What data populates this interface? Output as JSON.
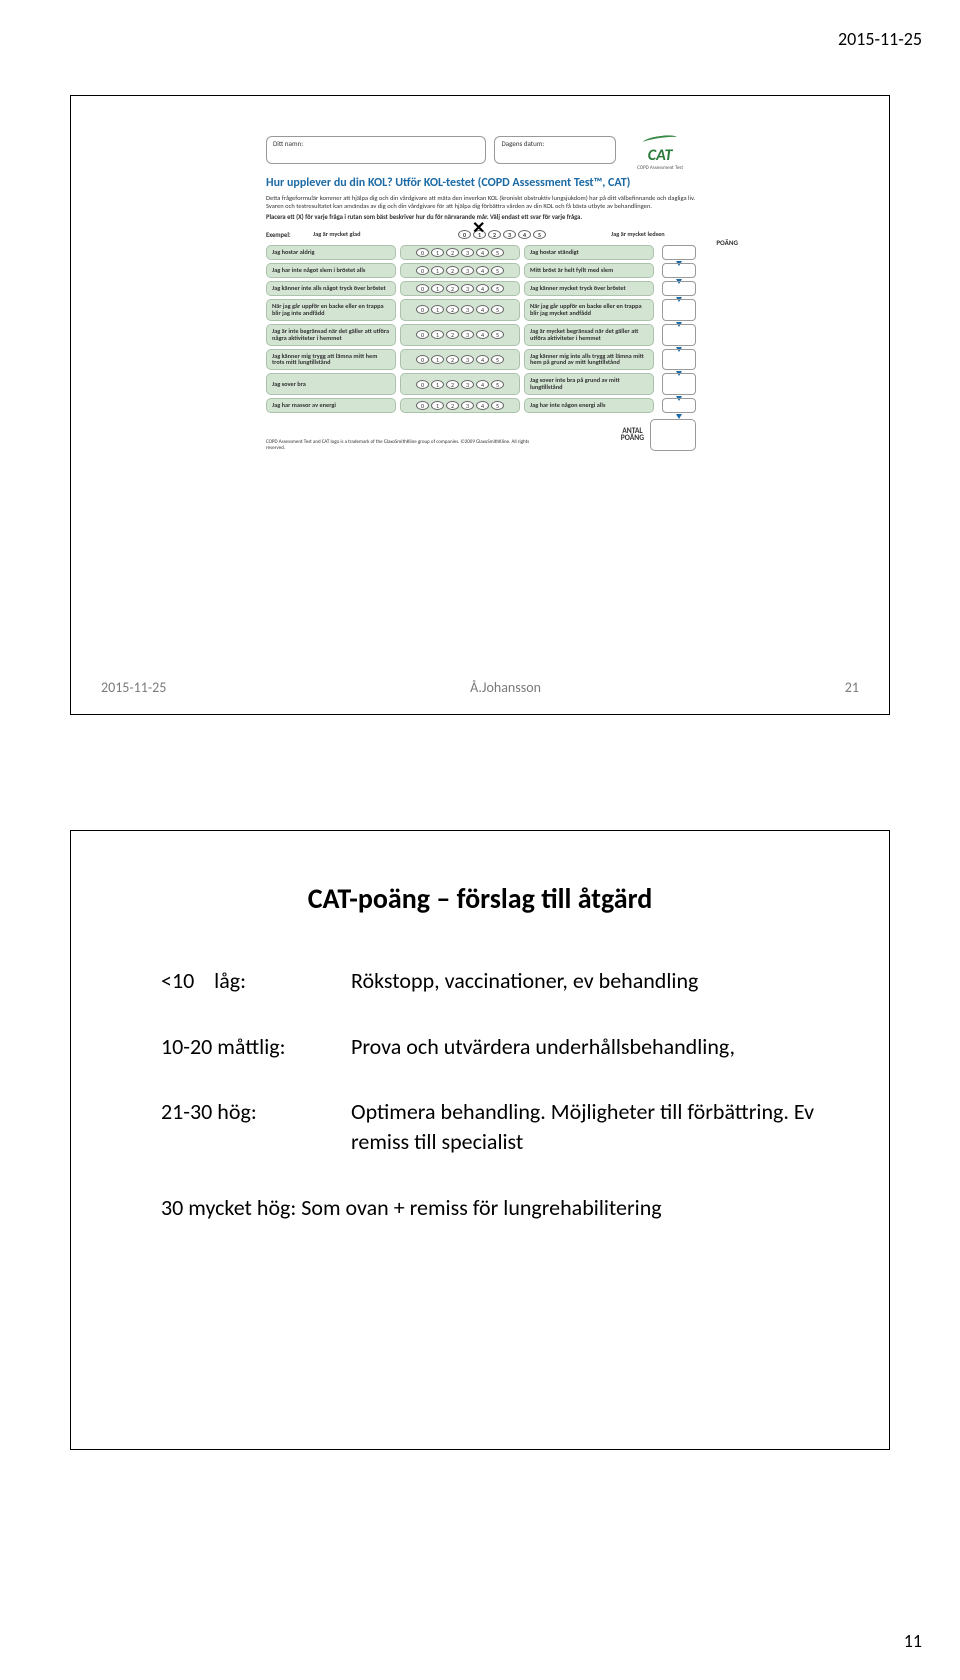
{
  "page_header_date": "2015-11-25",
  "page_number": "11",
  "slide1": {
    "footer_date": "2015-11-25",
    "footer_author": "Å.Johansson",
    "footer_slidenum": "21",
    "form": {
      "name_label": "Ditt namn:",
      "date_label": "Dagens datum:",
      "logo_text": "CAT",
      "logo_subtext": "COPD Assessment Test",
      "title": "Hur upplever du din KOL? Utför KOL-testet (COPD Assessment Test™, CAT)",
      "intro": "Detta frågeformulär kommer att hjälpa dig och din vårdgivare att mäta den inverkan KOL (kroniskt obstruktiv lungsjukdom) har på ditt välbefinnande och dagliga liv. Svaren och testresultatet kan användas av dig och din vårdgivare för att hjälpa dig förbättra vården av din KOL och få bästa utbyte av behandlingen.",
      "instruction": "Placera ett (X) för varje fråga i rutan som bäst beskriver hur du för närvarande mår. Välj endast ett svar för varje fråga.",
      "example_label": "Exempel:",
      "example_left": "Jag är mycket glad",
      "example_right": "Jag är mycket ledsen",
      "poang_label": "POÄNG",
      "scale": [
        "0",
        "1",
        "2",
        "3",
        "4",
        "5"
      ],
      "rows": [
        {
          "left": "Jag hostar aldrig",
          "right": "Jag hostar ständigt"
        },
        {
          "left": "Jag har inte något slem i bröstet alls",
          "right": "Mitt bröst är helt fyllt med slem"
        },
        {
          "left": "Jag känner inte alls något tryck över bröstet",
          "right": "Jag känner mycket tryck över bröstet"
        },
        {
          "left": "När jag går uppför en backe eller en trappa blir jag inte andfådd",
          "right": "När jag går uppför en backe eller en trappa blir jag mycket andfådd"
        },
        {
          "left": "Jag är inte begränsad när det gäller att utföra några aktiviteter i hemmet",
          "right": "Jag är mycket begränsad när det gäller att utföra aktiviteter i hemmet"
        },
        {
          "left": "Jag känner mig trygg att lämna mitt hem trots mitt lungtillstånd",
          "right": "Jag känner mig inte alls trygg att lämna mitt hem på grund av mitt lungtillstånd"
        },
        {
          "left": "Jag sover bra",
          "right": "Jag sover inte bra på grund av mitt lungtillstånd"
        },
        {
          "left": "Jag har massor av energi",
          "right": "Jag har inte någon energi alls"
        }
      ],
      "copyright": "COPD Assessment Test and CAT logo is a trademark of the GlaxoSmithKline group of companies. ©2009 GlaxoSmithKline. All rights reserved.",
      "total_label1": "ANTAL",
      "total_label2": "POÄNG"
    }
  },
  "slide2": {
    "title": "CAT-poäng – förslag till åtgärd",
    "rows": [
      {
        "label": "<10    låg:",
        "text": "Rökstopp, vaccinationer, ev behandling"
      },
      {
        "label": "10-20 måttlig:",
        "text": "Prova och utvärdera underhållsbehandling,"
      },
      {
        "label": "21-30 hög:",
        "text": "Optimera behandling. Möjligheter till förbättring. Ev remiss till specialist"
      },
      {
        "label": "30 mycket hög:",
        "text": "Som ovan + remiss för lungrehabilitering"
      }
    ]
  }
}
